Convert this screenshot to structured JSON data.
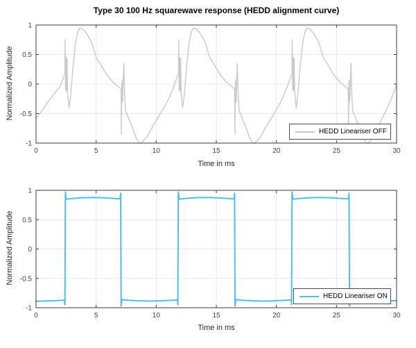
{
  "figure": {
    "background": "#ffffff",
    "title": "Type 30 100 Hz squarewave response (HEDD alignment curve)"
  },
  "colors": {
    "grid": "#e9e9e9",
    "axis": "#3b3b3b",
    "tick_text": "#424242",
    "off_line": "#c9c9c9",
    "on_line": "#4dbeee"
  },
  "chart_data": [
    {
      "type": "line",
      "title": "Type 30 100 Hz squarewave response (HEDD alignment curve)",
      "xlabel": "Time in ms",
      "ylabel": "Normalized Amplitude",
      "xlim": [
        0,
        30
      ],
      "ylim": [
        -1,
        1
      ],
      "xticks": [
        "0",
        "5",
        "10",
        "15",
        "20",
        "25",
        "30"
      ],
      "yticks": [
        "-1",
        "-0.5",
        "0",
        "0.5",
        "1"
      ],
      "grid": "on",
      "legend_position": "southeast",
      "series": [
        {
          "name": "HEDD Lineariser OFF",
          "color": "#c9c9c9",
          "line_width": 1.4,
          "points": [
            [
              0,
              -0.58
            ],
            [
              0.5,
              -0.45
            ],
            [
              1.0,
              -0.3
            ],
            [
              1.5,
              -0.17
            ],
            [
              2.0,
              -0.04
            ],
            [
              2.3,
              0.12
            ],
            [
              2.4,
              0.18
            ],
            [
              2.42,
              0.75
            ],
            [
              2.46,
              -0.1
            ],
            [
              2.5,
              0.45
            ],
            [
              2.54,
              -0.12
            ],
            [
              2.58,
              0.43
            ],
            [
              2.62,
              -0.15
            ],
            [
              2.75,
              -0.4
            ],
            [
              2.9,
              -0.15
            ],
            [
              3.1,
              0.35
            ],
            [
              3.3,
              0.72
            ],
            [
              3.5,
              0.9
            ],
            [
              3.65,
              0.95
            ],
            [
              3.9,
              0.93
            ],
            [
              4.2,
              0.86
            ],
            [
              4.6,
              0.72
            ],
            [
              5.0,
              0.45
            ],
            [
              5.4,
              0.32
            ],
            [
              5.9,
              0.15
            ],
            [
              6.4,
              0.03
            ],
            [
              7.0,
              -0.07
            ],
            [
              7.08,
              -0.1
            ],
            [
              7.1,
              -0.85
            ],
            [
              7.14,
              0.07
            ],
            [
              7.2,
              -0.3
            ],
            [
              7.3,
              0.35
            ],
            [
              7.38,
              -0.2
            ],
            [
              7.45,
              -0.45
            ],
            [
              7.7,
              -0.58
            ],
            [
              8.0,
              -0.73
            ],
            [
              8.3,
              -0.9
            ],
            [
              8.55,
              -0.99
            ],
            [
              8.75,
              -1.0
            ],
            [
              8.95,
              -0.96
            ],
            [
              9.2,
              -0.9
            ],
            [
              9.7,
              -0.72
            ],
            [
              10.2,
              -0.55
            ],
            [
              10.7,
              -0.38
            ],
            [
              11.1,
              -0.22
            ],
            [
              11.5,
              -0.02
            ],
            [
              11.85,
              0.18
            ],
            [
              11.87,
              0.75
            ],
            [
              11.91,
              -0.1
            ],
            [
              11.95,
              0.45
            ],
            [
              11.99,
              -0.12
            ],
            [
              12.03,
              0.43
            ],
            [
              12.07,
              -0.15
            ],
            [
              12.2,
              -0.4
            ],
            [
              12.35,
              -0.15
            ],
            [
              12.55,
              0.35
            ],
            [
              12.75,
              0.72
            ],
            [
              12.95,
              0.9
            ],
            [
              13.1,
              0.95
            ],
            [
              13.35,
              0.93
            ],
            [
              13.65,
              0.86
            ],
            [
              14.05,
              0.72
            ],
            [
              14.45,
              0.45
            ],
            [
              14.85,
              0.32
            ],
            [
              15.35,
              0.15
            ],
            [
              15.85,
              0.03
            ],
            [
              16.45,
              -0.07
            ],
            [
              16.53,
              -0.1
            ],
            [
              16.55,
              -0.85
            ],
            [
              16.59,
              0.07
            ],
            [
              16.65,
              -0.3
            ],
            [
              16.75,
              0.35
            ],
            [
              16.83,
              -0.2
            ],
            [
              16.9,
              -0.45
            ],
            [
              17.15,
              -0.58
            ],
            [
              17.45,
              -0.73
            ],
            [
              17.75,
              -0.9
            ],
            [
              18.0,
              -0.99
            ],
            [
              18.2,
              -1.0
            ],
            [
              18.4,
              -0.96
            ],
            [
              18.65,
              -0.9
            ],
            [
              19.15,
              -0.72
            ],
            [
              19.65,
              -0.55
            ],
            [
              20.15,
              -0.38
            ],
            [
              20.55,
              -0.22
            ],
            [
              20.95,
              -0.02
            ],
            [
              21.3,
              0.18
            ],
            [
              21.32,
              0.75
            ],
            [
              21.36,
              -0.1
            ],
            [
              21.4,
              0.45
            ],
            [
              21.44,
              -0.12
            ],
            [
              21.48,
              0.43
            ],
            [
              21.52,
              -0.15
            ],
            [
              21.65,
              -0.4
            ],
            [
              21.8,
              -0.15
            ],
            [
              22.0,
              0.35
            ],
            [
              22.2,
              0.72
            ],
            [
              22.4,
              0.9
            ],
            [
              22.55,
              0.95
            ],
            [
              22.8,
              0.93
            ],
            [
              23.1,
              0.86
            ],
            [
              23.5,
              0.72
            ],
            [
              23.9,
              0.45
            ],
            [
              24.3,
              0.32
            ],
            [
              24.8,
              0.15
            ],
            [
              25.3,
              0.03
            ],
            [
              25.9,
              -0.07
            ],
            [
              25.98,
              -0.1
            ],
            [
              26.0,
              -0.85
            ],
            [
              26.04,
              0.07
            ],
            [
              26.1,
              -0.3
            ],
            [
              26.2,
              0.35
            ],
            [
              26.28,
              -0.2
            ],
            [
              26.35,
              -0.45
            ],
            [
              26.6,
              -0.58
            ],
            [
              26.9,
              -0.73
            ],
            [
              27.2,
              -0.9
            ],
            [
              27.45,
              -0.99
            ],
            [
              27.65,
              -1.0
            ],
            [
              27.85,
              -0.96
            ],
            [
              28.1,
              -0.9
            ],
            [
              28.5,
              -0.7
            ],
            [
              29.0,
              -0.5
            ],
            [
              29.5,
              -0.28
            ],
            [
              29.8,
              -0.12
            ],
            [
              30,
              -0.02
            ]
          ]
        }
      ]
    },
    {
      "type": "line",
      "title": "",
      "xlabel": "Time in ms",
      "ylabel": "Normalized Amplitude",
      "xlim": [
        0,
        30
      ],
      "ylim": [
        -1,
        1
      ],
      "xticks": [
        "0",
        "5",
        "10",
        "15",
        "20",
        "25",
        "30"
      ],
      "yticks": [
        "-1",
        "-0.5",
        "0",
        "0.5",
        "1"
      ],
      "grid": "on",
      "legend_position": "southeast",
      "series": [
        {
          "name": "HEDD Lineariser ON",
          "color": "#4dbeee",
          "line_width": 2,
          "points": [
            [
              0,
              -0.89
            ],
            [
              0.8,
              -0.885
            ],
            [
              1.6,
              -0.88
            ],
            [
              2.35,
              -0.87
            ],
            [
              2.4,
              -0.95
            ],
            [
              2.44,
              0.97
            ],
            [
              2.5,
              0.85
            ],
            [
              3.0,
              0.862
            ],
            [
              3.8,
              0.872
            ],
            [
              4.75,
              0.878
            ],
            [
              5.7,
              0.872
            ],
            [
              6.5,
              0.862
            ],
            [
              7.0,
              0.855
            ],
            [
              7.04,
              0.95
            ],
            [
              7.08,
              -0.97
            ],
            [
              7.14,
              -0.862
            ],
            [
              7.6,
              -0.872
            ],
            [
              8.5,
              -0.882
            ],
            [
              9.45,
              -0.888
            ],
            [
              10.4,
              -0.882
            ],
            [
              11.2,
              -0.874
            ],
            [
              11.78,
              -0.868
            ],
            [
              11.8,
              -0.95
            ],
            [
              11.84,
              0.97
            ],
            [
              11.9,
              0.85
            ],
            [
              12.4,
              0.862
            ],
            [
              13.2,
              0.872
            ],
            [
              14.15,
              0.878
            ],
            [
              15.1,
              0.872
            ],
            [
              15.9,
              0.862
            ],
            [
              16.48,
              0.855
            ],
            [
              16.52,
              0.95
            ],
            [
              16.56,
              -0.97
            ],
            [
              16.62,
              -0.862
            ],
            [
              17.1,
              -0.872
            ],
            [
              18.0,
              -0.882
            ],
            [
              18.9,
              -0.888
            ],
            [
              19.9,
              -0.882
            ],
            [
              20.7,
              -0.874
            ],
            [
              21.24,
              -0.868
            ],
            [
              21.26,
              -0.95
            ],
            [
              21.3,
              0.97
            ],
            [
              21.36,
              0.85
            ],
            [
              21.9,
              0.862
            ],
            [
              22.7,
              0.872
            ],
            [
              23.65,
              0.878
            ],
            [
              24.6,
              0.872
            ],
            [
              25.4,
              0.862
            ],
            [
              26.0,
              0.855
            ],
            [
              26.04,
              0.95
            ],
            [
              26.08,
              -0.97
            ],
            [
              26.14,
              -0.862
            ],
            [
              26.6,
              -0.872
            ],
            [
              27.5,
              -0.882
            ],
            [
              28.4,
              -0.888
            ],
            [
              29.3,
              -0.884
            ],
            [
              30,
              -0.88
            ]
          ]
        }
      ]
    }
  ]
}
